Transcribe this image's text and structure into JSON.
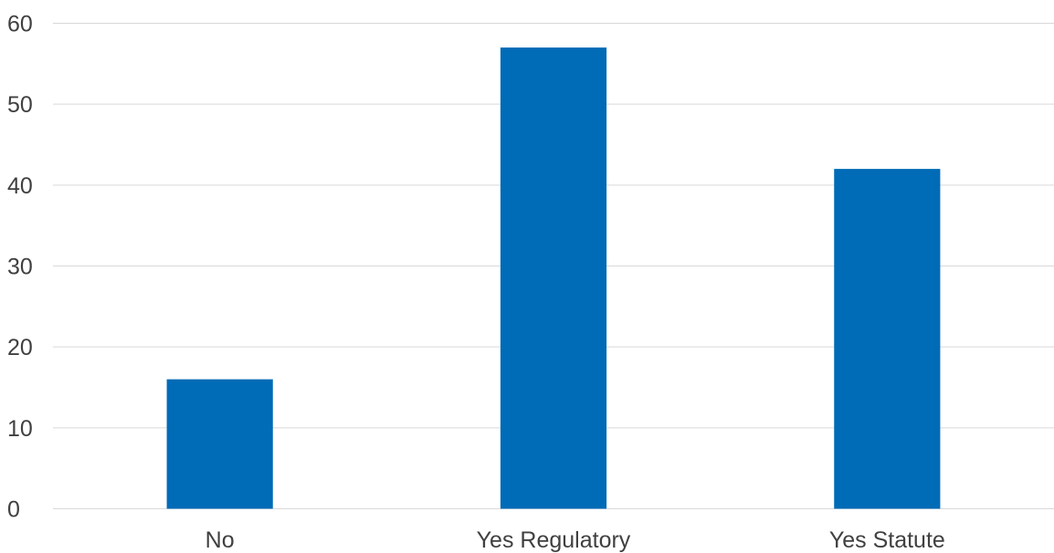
{
  "chart_data": {
    "type": "bar",
    "categories": [
      "No",
      "Yes Regulatory",
      "Yes Statute"
    ],
    "series": [
      {
        "values": [
          16,
          57,
          42
        ],
        "color": "#006bb6"
      }
    ],
    "title": "",
    "xlabel": "",
    "ylabel": "",
    "ylim": [
      0,
      60
    ],
    "yticks": [
      0,
      10,
      20,
      30,
      40,
      50,
      60
    ],
    "grid": true,
    "legend": "none",
    "colors": {
      "bar": "#006bb6",
      "grid": "#d9d9d9",
      "tick_text": "#404040"
    }
  }
}
